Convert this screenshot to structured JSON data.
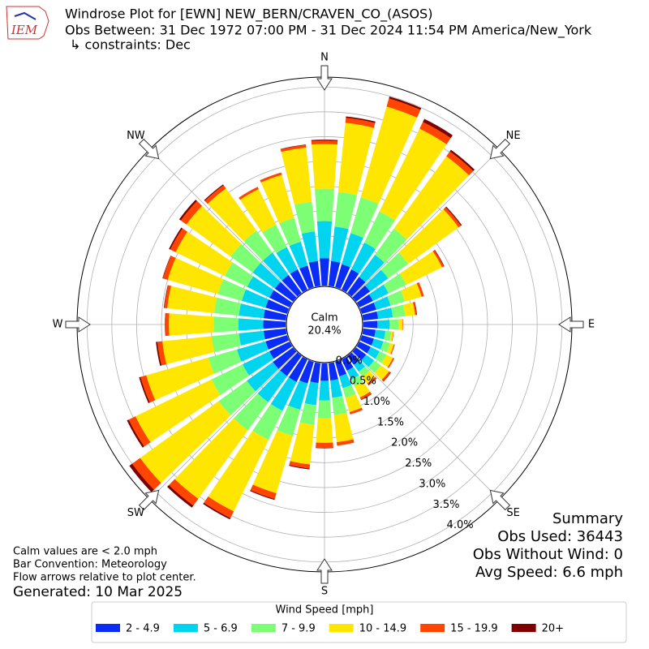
{
  "chart_data": {
    "type": "windrose",
    "title": "Windrose Plot for [EWN] NEW_BERN/CRAVEN_CO_(ASOS)",
    "subtitle": "Obs Between: 31 Dec 1972 07:00 PM - 31 Dec 2024 11:54 PM America/New_York",
    "constraints": "↳ constraints: Dec",
    "logo_text": "IEM",
    "x": [
      0,
      10,
      20,
      30,
      40,
      50,
      60,
      70,
      80,
      90,
      100,
      110,
      120,
      130,
      140,
      150,
      160,
      170,
      180,
      190,
      200,
      210,
      220,
      230,
      240,
      250,
      260,
      270,
      280,
      290,
      300,
      310,
      320,
      330,
      340,
      350
    ],
    "xticks": [
      {
        "value": 0,
        "label": "N"
      },
      {
        "value": 45,
        "label": "NE"
      },
      {
        "value": 90,
        "label": "E"
      },
      {
        "value": 135,
        "label": "SE"
      },
      {
        "value": 180,
        "label": "S"
      },
      {
        "value": 225,
        "label": "SW"
      },
      {
        "value": 270,
        "label": "W"
      },
      {
        "value": 315,
        "label": "NW"
      }
    ],
    "ylim": [
      0,
      4.2
    ],
    "yticks": [
      {
        "value": 0,
        "label": "0.0%"
      },
      {
        "value": 0.5,
        "label": "0.5%"
      },
      {
        "value": 1,
        "label": "1.0%"
      },
      {
        "value": 1.5,
        "label": "1.5%"
      },
      {
        "value": 2,
        "label": "2.0%"
      },
      {
        "value": 2.5,
        "label": "2.5%"
      },
      {
        "value": 3,
        "label": "3.0%"
      },
      {
        "value": 3.5,
        "label": "3.5%"
      },
      {
        "value": 4,
        "label": "4.0%"
      }
    ],
    "grid": true,
    "calm_label": "Calm",
    "calm_value": 20.4,
    "calm_value_label": "20.4%",
    "legend_title": "Wind Speed [mph]",
    "series": [
      {
        "name": "2 - 4.9",
        "color": "#0a2cf5",
        "values": [
          0.55,
          0.5,
          0.48,
          0.45,
          0.4,
          0.35,
          0.3,
          0.3,
          0.3,
          0.28,
          0.25,
          0.25,
          0.25,
          0.25,
          0.22,
          0.25,
          0.3,
          0.35,
          0.35,
          0.4,
          0.45,
          0.5,
          0.5,
          0.5,
          0.45,
          0.45,
          0.45,
          0.45,
          0.45,
          0.45,
          0.45,
          0.45,
          0.45,
          0.45,
          0.45,
          0.5
        ]
      },
      {
        "name": "5 - 6.9",
        "color": "#00d4ee",
        "values": [
          0.75,
          0.7,
          0.65,
          0.6,
          0.55,
          0.45,
          0.35,
          0.3,
          0.3,
          0.25,
          0.2,
          0.2,
          0.2,
          0.2,
          0.17,
          0.2,
          0.25,
          0.35,
          0.4,
          0.45,
          0.55,
          0.65,
          0.65,
          0.65,
          0.6,
          0.6,
          0.5,
          0.5,
          0.5,
          0.5,
          0.5,
          0.55,
          0.55,
          0.5,
          0.5,
          0.6
        ]
      },
      {
        "name": "7 - 9.9",
        "color": "#7cff74",
        "values": [
          0.65,
          0.7,
          0.75,
          0.7,
          0.65,
          0.5,
          0.4,
          0.3,
          0.25,
          0.18,
          0.12,
          0.14,
          0.15,
          0.17,
          0.12,
          0.15,
          0.2,
          0.35,
          0.35,
          0.4,
          0.55,
          0.65,
          0.7,
          0.7,
          0.7,
          0.6,
          0.55,
          0.5,
          0.5,
          0.5,
          0.5,
          0.55,
          0.55,
          0.5,
          0.5,
          0.6
        ]
      },
      {
        "name": "10 - 14.9",
        "color": "#ffe600",
        "values": [
          0.9,
          1.4,
          1.9,
          1.85,
          1.8,
          1.25,
          0.8,
          0.35,
          0.2,
          0.08,
          0.04,
          0.08,
          0.15,
          0.2,
          0.17,
          0.25,
          0.3,
          0.55,
          0.5,
          0.8,
          1.2,
          1.6,
          1.7,
          1.95,
          1.7,
          1.3,
          1.0,
          0.9,
          0.95,
          1.05,
          1.1,
          1.1,
          1.05,
          0.8,
          0.9,
          1.1
        ]
      },
      {
        "name": "15 - 19.9",
        "color": "#ff4500",
        "values": [
          0.07,
          0.1,
          0.17,
          0.15,
          0.12,
          0.06,
          0.04,
          0.05,
          0.03,
          0.01,
          0.01,
          0.02,
          0.03,
          0.04,
          0.04,
          0.05,
          0.05,
          0.07,
          0.1,
          0.08,
          0.12,
          0.15,
          0.17,
          0.2,
          0.15,
          0.12,
          0.1,
          0.07,
          0.06,
          0.1,
          0.12,
          0.14,
          0.08,
          0.05,
          0.05,
          0.05
        ]
      },
      {
        "name": "20+",
        "color": "#7f0000",
        "values": [
          0.02,
          0.03,
          0.04,
          0.07,
          0.04,
          0.02,
          0.01,
          0,
          0.01,
          0,
          0,
          0,
          0,
          0.01,
          0.01,
          0.01,
          0,
          0,
          0.01,
          0.02,
          0.02,
          0.03,
          0.05,
          0.07,
          0.04,
          0.03,
          0.03,
          0.01,
          0.01,
          0.01,
          0.03,
          0.04,
          0.02,
          0,
          0,
          0.01
        ]
      }
    ],
    "summary": {
      "title": "Summary",
      "lines": [
        "Obs Used: 36443",
        "Obs Without Wind: 0",
        "Avg Speed: 6.6 mph"
      ]
    },
    "notes": [
      "Calm values are < 2.0 mph",
      "Bar Convention: Meteorology",
      "Flow arrows relative to plot center."
    ],
    "generated": "Generated: 10 Mar 2025"
  }
}
